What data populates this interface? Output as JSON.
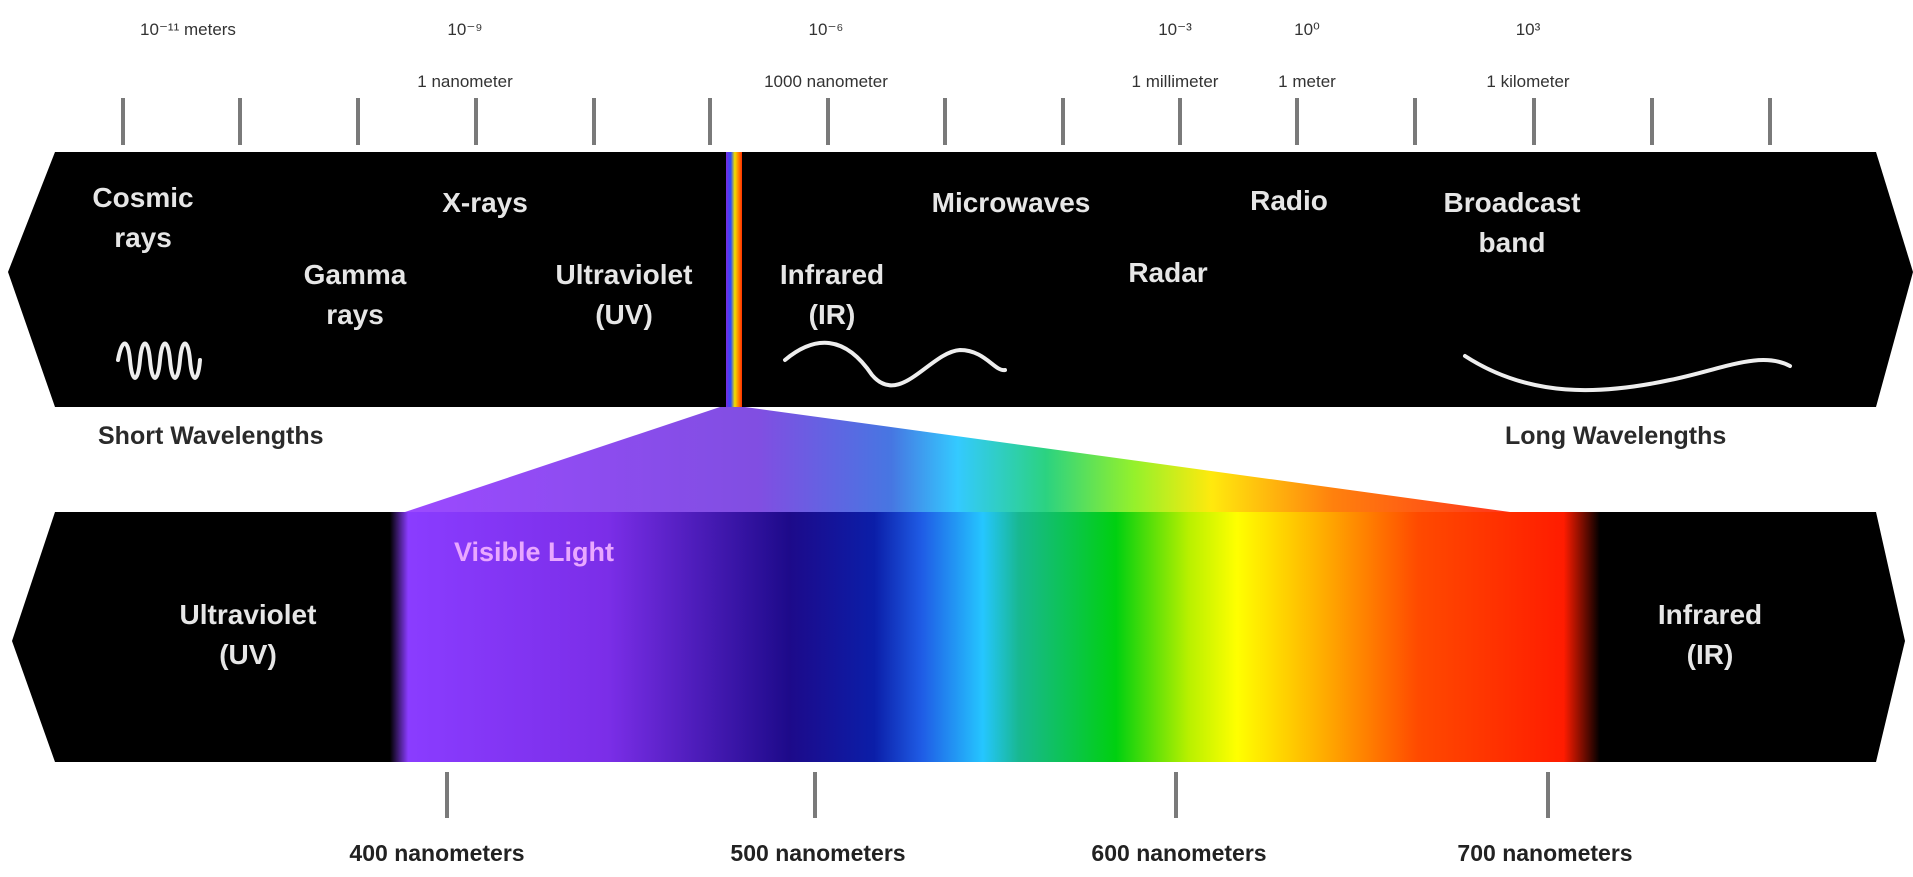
{
  "scale_labels": [
    {
      "exp": "10⁻¹¹ meters",
      "unit": ""
    },
    {
      "exp": "10⁻⁹",
      "unit": "1 nanometer"
    },
    {
      "exp": "10⁻⁶",
      "unit": "1000 nanometer"
    },
    {
      "exp": "10⁻³",
      "unit": "1 millimeter"
    },
    {
      "exp": "10⁰",
      "unit": "1 meter"
    },
    {
      "exp": "10³",
      "unit": "1 kilometer"
    }
  ],
  "spectrum_bands": [
    "Cosmic\nrays",
    "X-rays",
    "Gamma\nrays",
    "Ultraviolet\n(UV)",
    "Infrared\n(IR)",
    "Microwaves",
    "Radar",
    "Radio",
    "Broadcast\nband"
  ],
  "short_wavelengths": "Short Wavelengths",
  "long_wavelengths": "Long Wavelengths",
  "visible": {
    "title": "Visible Light",
    "left_label": "Ultraviolet\n(UV)",
    "right_label": "Infrared\n(IR)",
    "nm_labels": [
      "400 nanometers",
      "500 nanometers",
      "600 nanometers",
      "700 nanometers"
    ]
  },
  "colors": {
    "band_bg": "#000000",
    "band_text": "#e6e6e6",
    "visible_title": "#e9a8ff",
    "tick": "#7a7a7a"
  }
}
